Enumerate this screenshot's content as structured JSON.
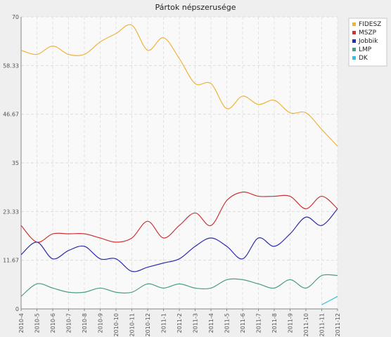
{
  "chart_data": {
    "type": "line",
    "title": "Pártok népszerusége",
    "xlabel": "",
    "ylabel": "",
    "ylim": [
      0,
      70
    ],
    "y_ticks": [
      "0",
      "11.67",
      "23.33",
      "35",
      "46.67",
      "58.33",
      "70"
    ],
    "grid": true,
    "legend_position": "top-right",
    "categories": [
      "2010-4",
      "2010-5",
      "2010-6",
      "2010-7",
      "2010-8",
      "2010-9",
      "2010-10",
      "2010-11",
      "2010-12",
      "2011-1",
      "2011-2",
      "2011-3",
      "2011-4",
      "2011-5",
      "2011-6",
      "2011-7",
      "2011-8",
      "2011-9",
      "2011-10",
      "2011-11",
      "2011-12"
    ],
    "series": [
      {
        "name": "FIDESZ",
        "color": "#eeb43a",
        "values": [
          62,
          61,
          63,
          61,
          61,
          64,
          66,
          68,
          62,
          65,
          60,
          54,
          54,
          48,
          51,
          49,
          50,
          47,
          47,
          43,
          39
        ]
      },
      {
        "name": "MSZP",
        "color": "#cc3333",
        "values": [
          20,
          16,
          18,
          18,
          18,
          17,
          16,
          17,
          21,
          17,
          20,
          23,
          20,
          26,
          28,
          27,
          27,
          27,
          24,
          27,
          24
        ]
      },
      {
        "name": "Jobbik",
        "color": "#2b2ba8",
        "values": [
          13,
          16,
          12,
          14,
          15,
          12,
          12,
          9,
          10,
          11,
          12,
          15,
          17,
          15,
          12,
          17,
          15,
          18,
          22,
          20,
          24
        ]
      },
      {
        "name": "LMP",
        "color": "#4a9e7e",
        "values": [
          3,
          6,
          5,
          4,
          4,
          5,
          4,
          4,
          6,
          5,
          6,
          5,
          5,
          7,
          7,
          6,
          5,
          7,
          5,
          8,
          8
        ]
      },
      {
        "name": "DK",
        "color": "#33c2d6",
        "values": [
          null,
          null,
          null,
          null,
          null,
          null,
          null,
          null,
          null,
          null,
          null,
          null,
          null,
          null,
          null,
          null,
          null,
          null,
          null,
          1,
          3
        ]
      }
    ]
  }
}
